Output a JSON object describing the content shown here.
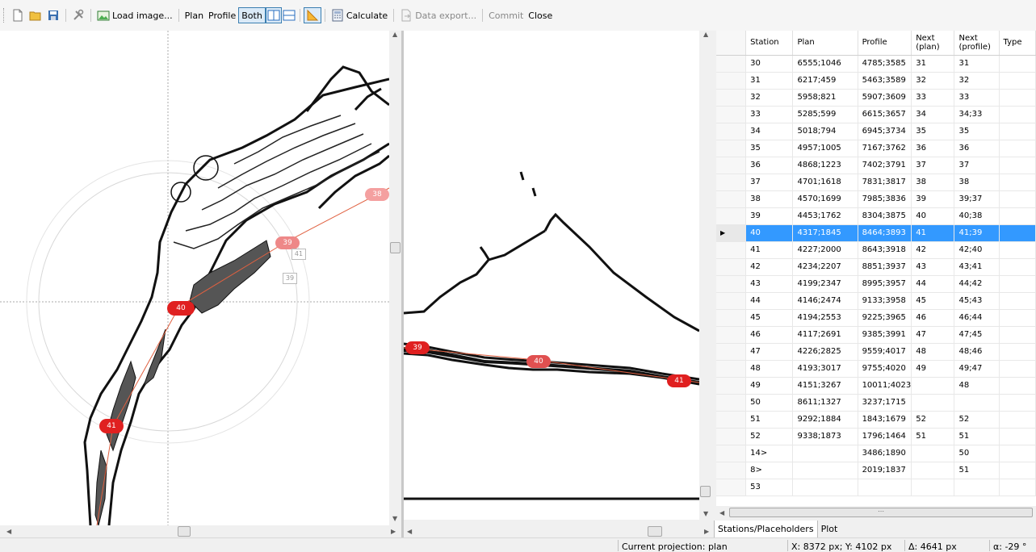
{
  "toolbar": {
    "load_image": "Load image...",
    "plan": "Plan",
    "profile": "Profile",
    "both": "Both",
    "calculate": "Calculate",
    "data_export": "Data export...",
    "commit": "Commit",
    "close": "Close"
  },
  "plan_view": {
    "markers": [
      "38",
      "39",
      "40",
      "41"
    ],
    "placeholders": [
      "41",
      "39"
    ]
  },
  "profile_view": {
    "markers": [
      "39",
      "40",
      "41"
    ]
  },
  "table": {
    "columns": [
      "Station",
      "Plan",
      "Profile",
      "Next (plan)",
      "Next (profile)",
      "Type"
    ],
    "selected_row": 10,
    "rows": [
      [
        "30",
        "6555;1046",
        "4785;3585",
        "31",
        "31"
      ],
      [
        "31",
        "6217;459",
        "5463;3589",
        "32",
        "32"
      ],
      [
        "32",
        "5958;821",
        "5907;3609",
        "33",
        "33"
      ],
      [
        "33",
        "5285;599",
        "6615;3657",
        "34",
        "34;33"
      ],
      [
        "34",
        "5018;794",
        "6945;3734",
        "35",
        "35"
      ],
      [
        "35",
        "4957;1005",
        "7167;3762",
        "36",
        "36"
      ],
      [
        "36",
        "4868;1223",
        "7402;3791",
        "37",
        "37"
      ],
      [
        "37",
        "4701;1618",
        "7831;3817",
        "38",
        "38"
      ],
      [
        "38",
        "4570;1699",
        "7985;3836",
        "39",
        "39;37"
      ],
      [
        "39",
        "4453;1762",
        "8304;3875",
        "40",
        "40;38"
      ],
      [
        "40",
        "4317;1845",
        "8464;3893",
        "41",
        "41;39"
      ],
      [
        "41",
        "4227;2000",
        "8643;3918",
        "42",
        "42;40"
      ],
      [
        "42",
        "4234;2207",
        "8851;3937",
        "43",
        "43;41"
      ],
      [
        "43",
        "4199;2347",
        "8995;3957",
        "44",
        "44;42"
      ],
      [
        "44",
        "4146;2474",
        "9133;3958",
        "45",
        "45;43"
      ],
      [
        "45",
        "4194;2553",
        "9225;3965",
        "46",
        "46;44"
      ],
      [
        "46",
        "4117;2691",
        "9385;3991",
        "47",
        "47;45"
      ],
      [
        "47",
        "4226;2825",
        "9559;4017",
        "48",
        "48;46"
      ],
      [
        "48",
        "4193;3017",
        "9755;4020",
        "49",
        "49;47"
      ],
      [
        "49",
        "4151;3267",
        "10011;4023",
        "",
        "48"
      ],
      [
        "50",
        "8611;1327",
        "3237;1715",
        "",
        ""
      ],
      [
        "51",
        "9292;1884",
        "1843;1679",
        "52",
        "52"
      ],
      [
        "52",
        "9338;1873",
        "1796;1464",
        "51",
        "51"
      ],
      [
        "14>",
        "",
        "3486;1890",
        "",
        "50"
      ],
      [
        "8>",
        "",
        "2019;1837",
        "",
        "51"
      ],
      [
        "53",
        "",
        "",
        "",
        ""
      ]
    ]
  },
  "tabs": [
    "Stations/Placeholders",
    "Plot"
  ],
  "status": {
    "projection": "Current projection: plan",
    "coords": "X: 8372 px; Y: 4102 px",
    "delta": "Δ: 4641 px",
    "alpha": "α: -29 °"
  },
  "colors": {
    "selection": "#3399ff",
    "marker": "#e02020",
    "survey_line": "#e06040"
  }
}
